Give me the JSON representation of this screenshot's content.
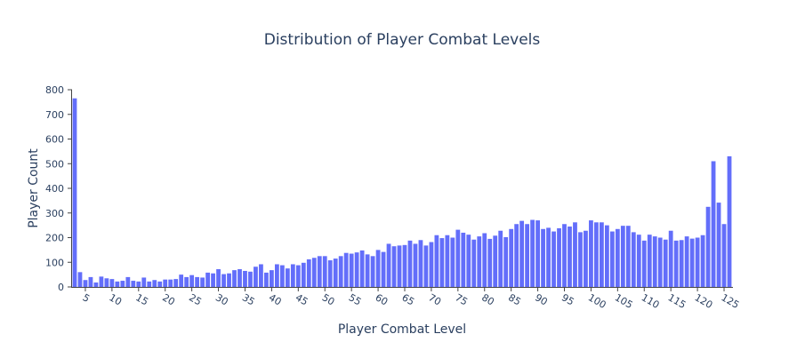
{
  "chart_data": {
    "type": "bar",
    "title": "Distribution of Player Combat Levels",
    "xlabel": "Player Combat Level",
    "ylabel": "Player Count",
    "x_start": 3,
    "values": [
      765,
      60,
      28,
      40,
      18,
      42,
      35,
      32,
      22,
      25,
      40,
      25,
      22,
      38,
      22,
      28,
      22,
      30,
      30,
      32,
      50,
      40,
      48,
      40,
      38,
      58,
      55,
      72,
      52,
      55,
      68,
      72,
      65,
      62,
      82,
      92,
      58,
      68,
      92,
      88,
      75,
      92,
      88,
      98,
      112,
      118,
      125,
      125,
      108,
      115,
      125,
      138,
      135,
      140,
      148,
      132,
      125,
      150,
      142,
      175,
      165,
      168,
      170,
      188,
      175,
      190,
      168,
      182,
      210,
      198,
      210,
      200,
      232,
      220,
      212,
      192,
      205,
      218,
      195,
      208,
      228,
      202,
      235,
      255,
      268,
      255,
      272,
      270,
      235,
      240,
      225,
      238,
      255,
      245,
      262,
      222,
      228,
      270,
      262,
      262,
      250,
      225,
      235,
      248,
      248,
      222,
      212,
      188,
      212,
      205,
      200,
      192,
      228,
      188,
      190,
      205,
      196,
      200,
      210,
      325,
      510,
      342,
      255,
      530
    ],
    "ylim": [
      0,
      800
    ],
    "y_ticks": [
      0,
      100,
      200,
      300,
      400,
      500,
      600,
      700,
      800
    ],
    "x_ticks": [
      5,
      10,
      15,
      20,
      25,
      30,
      35,
      40,
      45,
      50,
      55,
      60,
      65,
      70,
      75,
      80,
      85,
      90,
      95,
      100,
      105,
      110,
      115,
      120,
      125
    ],
    "bar_color": "#636efa",
    "grid": false
  }
}
